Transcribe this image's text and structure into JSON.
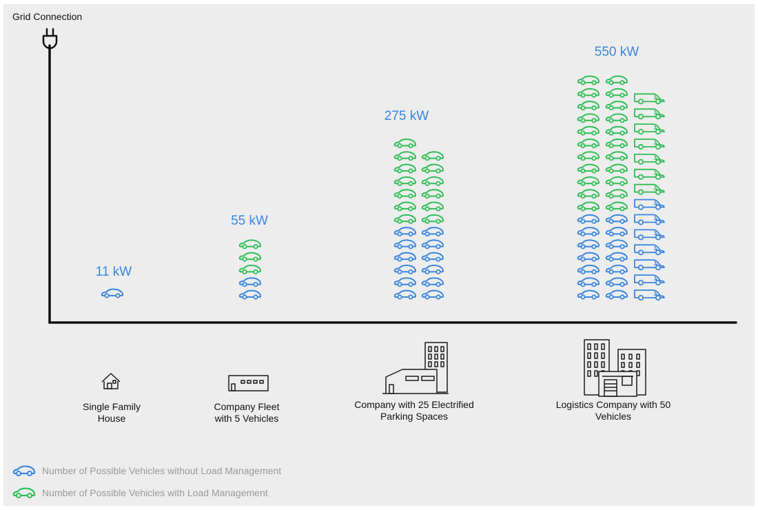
{
  "chart_data": {
    "type": "bar",
    "title": "",
    "ylabel": "Grid Connection",
    "categories": [
      "Single Family House",
      "Company Fleet with 5 Vehicles",
      "Company with 25 Electrified Parking Spaces",
      "Logistics Company with 50 Vehicles"
    ],
    "value_labels": [
      "11 kW",
      "55 kW",
      "275 kW",
      "550 kW"
    ],
    "series": [
      {
        "name": "Number of Possible Vehicles without Load Management",
        "values": [
          1,
          2,
          12,
          21
        ]
      },
      {
        "name": "Number of Possible Vehicles with Load Management",
        "values": [
          0,
          3,
          13,
          29
        ]
      }
    ],
    "column_split": {
      "company_parking": {
        "car_columns": 2
      },
      "logistics": {
        "car_columns": 2,
        "van_columns": 1
      }
    },
    "colors": {
      "without_lm": "#3a86e0",
      "with_lm": "#2fbf55",
      "axis": "#111111"
    },
    "icons": [
      "plug-icon",
      "house-icon",
      "warehouse-icon",
      "office-building-icon",
      "logistics-buildings-icon",
      "car-icon",
      "van-icon"
    ]
  }
}
